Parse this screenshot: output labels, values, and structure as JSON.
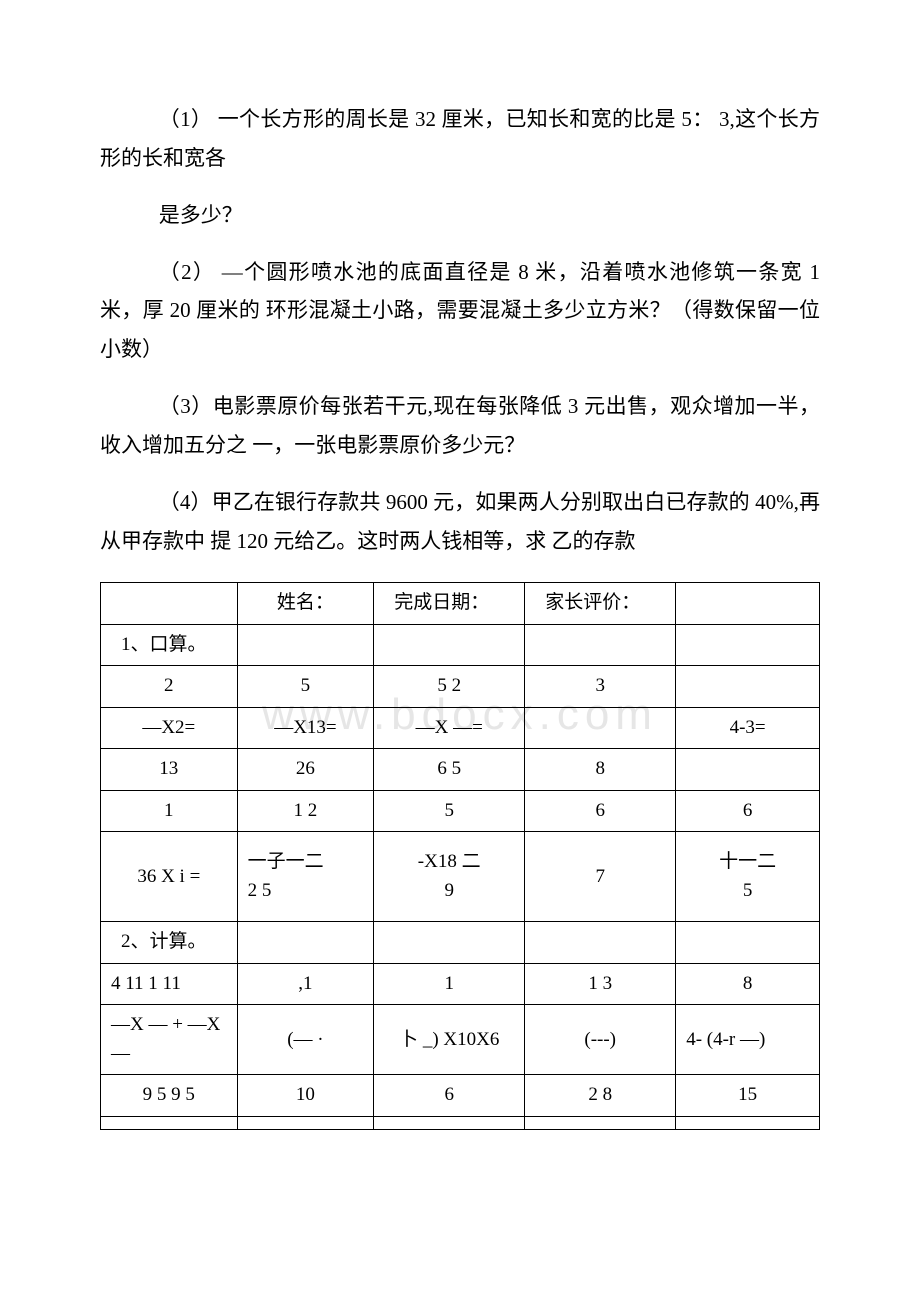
{
  "questions": {
    "q1_line1": "（1） 一个长方形的周长是 32 厘米，已知长和宽的比是 5： 3,这个长方形的长和宽各",
    "q1_line2": "是多少？",
    "q2": "（2） —个圆形喷水池的底面直径是 8 米，沿着喷水池修筑一条宽 1 米，厚 20 厘米的 环形混凝土小路，需要混凝土多少立方米？（得数保留一位小数）",
    "q3": "（3）电影票原价每张若干元,现在每张降低 3 元出售，观众增加一半，收入增加五分之 一，一张电影票原价多少元？",
    "q4": "（4）甲乙在银行存款共 9600 元，如果两人分别取出白已存款的 40%,再从甲存款中 提 120 元给乙。这时两人钱相等，求 乙的存款"
  },
  "watermark": "www.bdocx.com",
  "table": {
    "header": {
      "h1": "",
      "h2": "姓名：",
      "h3": "完成日期：",
      "h4": "家长评价：",
      "h5": ""
    },
    "rows": [
      [
        "1、口算。",
        "",
        "",
        "",
        ""
      ],
      [
        "2",
        "5",
        "5 2",
        "3",
        ""
      ],
      [
        "—X2=",
        "—X13=",
        "—X —=",
        "",
        "4-3="
      ],
      [
        "13",
        "26",
        "6 5",
        "8",
        ""
      ],
      [
        "1",
        "1 2",
        "5",
        "6",
        "6"
      ],
      [
        "36 X i =",
        "一子一二\n2 5",
        "-X18 二\n9",
        "7",
        "十一二\n5"
      ],
      [
        "2、计算。",
        "",
        "",
        "",
        ""
      ],
      [
        "4 11 1 11",
        ",1",
        "1",
        "1 3",
        "8"
      ],
      [
        "—X — + —X —",
        "(— ·",
        "卜 _) X10X6",
        "(---)",
        "4- (4-r —)"
      ],
      [
        "9 5 9 5",
        "10",
        "6",
        "2 8",
        "15"
      ],
      [
        "",
        "",
        "",
        "",
        ""
      ]
    ]
  }
}
